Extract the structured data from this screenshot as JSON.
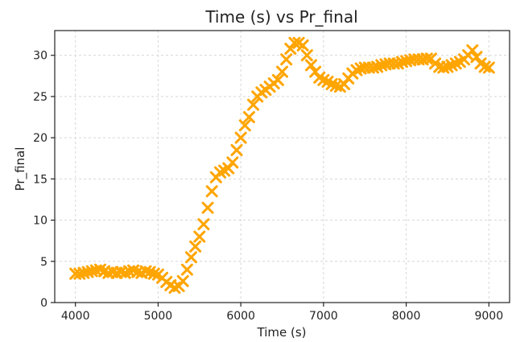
{
  "chart_data": {
    "type": "scatter",
    "title": "Time (s) vs Pr_final",
    "xlabel": "Time (s)",
    "ylabel": "Pr_final",
    "xlim": [
      3750,
      9250
    ],
    "ylim": [
      0,
      33
    ],
    "xticks": [
      4000,
      5000,
      6000,
      7000,
      8000,
      9000
    ],
    "yticks": [
      0,
      5,
      10,
      15,
      20,
      25,
      30
    ],
    "grid": true,
    "marker": "x",
    "color": "#FFA500",
    "series": [
      {
        "name": "",
        "x": [
          4000,
          4050,
          4100,
          4150,
          4200,
          4250,
          4300,
          4350,
          4400,
          4450,
          4500,
          4550,
          4600,
          4650,
          4700,
          4750,
          4800,
          4850,
          4900,
          4950,
          5000,
          5050,
          5100,
          5150,
          5200,
          5250,
          5300,
          5350,
          5400,
          5450,
          5500,
          5550,
          5600,
          5650,
          5700,
          5750,
          5800,
          5850,
          5900,
          5950,
          6000,
          6050,
          6100,
          6150,
          6200,
          6250,
          6300,
          6350,
          6400,
          6450,
          6500,
          6550,
          6600,
          6650,
          6700,
          6750,
          6800,
          6850,
          6900,
          6950,
          7000,
          7050,
          7100,
          7150,
          7200,
          7250,
          7300,
          7350,
          7400,
          7450,
          7500,
          7550,
          7600,
          7650,
          7700,
          7750,
          7800,
          7850,
          7900,
          7950,
          8000,
          8050,
          8100,
          8150,
          8200,
          8250,
          8300,
          8350,
          8400,
          8450,
          8500,
          8550,
          8600,
          8650,
          8700,
          8750,
          8800,
          8850,
          8900,
          8950,
          9000
        ],
        "y": [
          3.5,
          3.5,
          3.6,
          3.7,
          3.8,
          3.9,
          4.0,
          3.8,
          3.6,
          3.7,
          3.6,
          3.7,
          3.6,
          3.8,
          3.9,
          3.7,
          3.6,
          3.8,
          3.7,
          3.5,
          3.4,
          3.0,
          2.5,
          2.1,
          1.8,
          2.0,
          2.6,
          4.0,
          5.5,
          6.8,
          8.0,
          9.5,
          11.5,
          13.5,
          15.2,
          15.8,
          16.0,
          16.3,
          17.0,
          18.5,
          20.0,
          21.5,
          22.5,
          24.0,
          25.0,
          25.5,
          25.8,
          26.2,
          26.6,
          27.0,
          28.0,
          29.5,
          30.8,
          31.5,
          31.5,
          31.2,
          30.0,
          28.8,
          28.0,
          27.3,
          27.0,
          26.8,
          26.5,
          26.3,
          26.2,
          26.5,
          27.2,
          27.8,
          28.2,
          28.4,
          28.5,
          28.5,
          28.5,
          28.6,
          28.8,
          28.9,
          29.0,
          29.0,
          29.0,
          29.2,
          29.3,
          29.4,
          29.5,
          29.5,
          29.5,
          29.6,
          29.6,
          29.0,
          28.6,
          28.5,
          28.6,
          28.8,
          29.0,
          29.2,
          29.5,
          30.0,
          30.6,
          29.8,
          29.0,
          28.6,
          28.5
        ]
      }
    ]
  }
}
